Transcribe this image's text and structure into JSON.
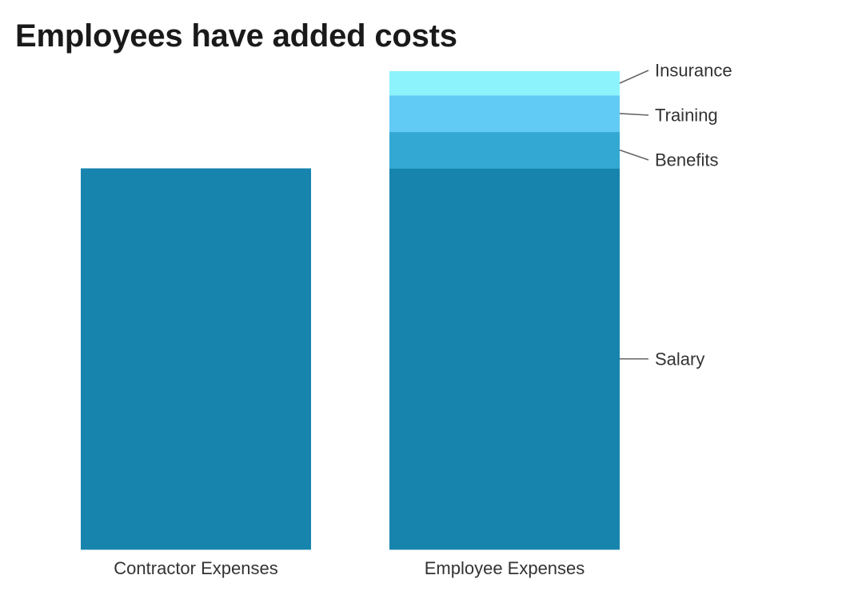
{
  "chart_data": {
    "type": "bar",
    "stacked": true,
    "title": "Employees have added costs",
    "xlabel": "",
    "ylabel": "",
    "grid": false,
    "categories": [
      "Contractor Expenses",
      "Employee Expenses"
    ],
    "bars": [
      {
        "category": "Contractor Expenses",
        "segments": [
          {
            "name": "",
            "value": 100,
            "color": "#1784ad"
          }
        ]
      },
      {
        "category": "Employee Expenses",
        "segments": [
          {
            "name": "Salary",
            "value": 100,
            "color": "#1784ad"
          },
          {
            "name": "Benefits",
            "value": 9.6,
            "color": "#32a8d3"
          },
          {
            "name": "Training",
            "value": 9.6,
            "color": "#62cbf5"
          },
          {
            "name": "Insurance",
            "value": 6.3,
            "color": "#8cf3fd"
          }
        ]
      }
    ],
    "ylim": [
      0,
      125.5
    ],
    "axes_visible": false
  }
}
